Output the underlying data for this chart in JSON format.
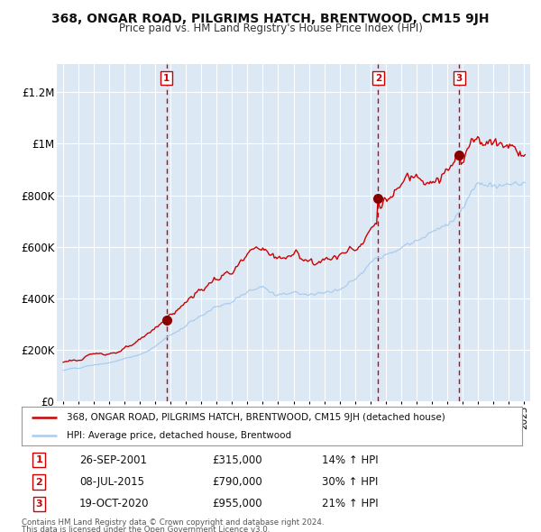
{
  "title": "368, ONGAR ROAD, PILGRIMS HATCH, BRENTWOOD, CM15 9JH",
  "subtitle": "Price paid vs. HM Land Registry's House Price Index (HPI)",
  "bg_color": "#dce9f5",
  "fig_bg_color": "#ffffff",
  "red_line_color": "#cc0000",
  "blue_line_color": "#aaccee",
  "marker_color": "#880000",
  "vline_color": "#cc0000",
  "ylim": [
    0,
    1300000
  ],
  "yticks": [
    0,
    200000,
    400000,
    600000,
    800000,
    1000000,
    1200000
  ],
  "ytick_labels": [
    "£0",
    "£200K",
    "£400K",
    "£600K",
    "£800K",
    "£1M",
    "£1.2M"
  ],
  "xstart_year": 1995,
  "xend_year": 2025,
  "legend_red": "368, ONGAR ROAD, PILGRIMS HATCH, BRENTWOOD, CM15 9JH (detached house)",
  "legend_blue": "HPI: Average price, detached house, Brentwood",
  "purchase1_date": "26-SEP-2001",
  "purchase1_year": 2001.73,
  "purchase1_price": 315000,
  "purchase1_pct": "14%",
  "purchase1_label": "1",
  "purchase2_date": "08-JUL-2015",
  "purchase2_year": 2015.52,
  "purchase2_price": 790000,
  "purchase2_pct": "30%",
  "purchase2_label": "2",
  "purchase3_date": "19-OCT-2020",
  "purchase3_year": 2020.8,
  "purchase3_price": 955000,
  "purchase3_pct": "21%",
  "purchase3_label": "3",
  "footer1": "Contains HM Land Registry data © Crown copyright and database right 2024.",
  "footer2": "This data is licensed under the Open Government Licence v3.0."
}
